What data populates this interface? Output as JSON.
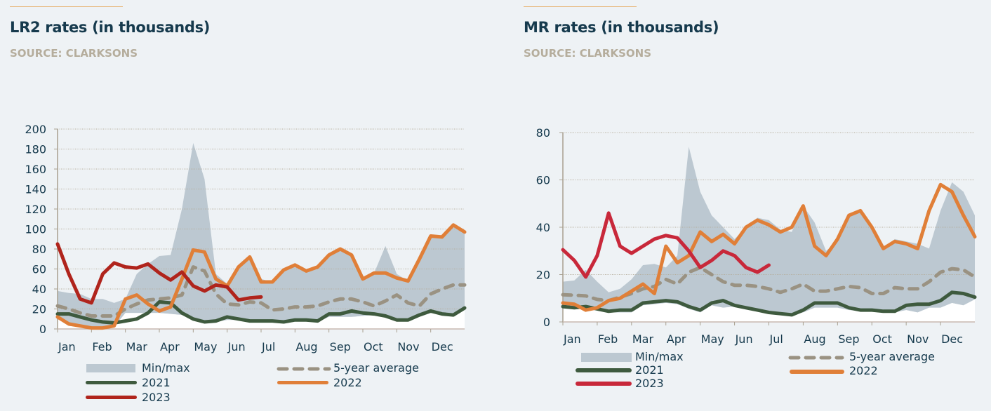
{
  "colors": {
    "background": "#eef2f5",
    "title": "#163a4d",
    "source": "#b5ad9c",
    "accent": "#e8b87a",
    "minmax": "#bcc8d1",
    "y2021": "#3e5a3e",
    "y2022": "#e07f38",
    "y2023_lr2": "#b0241c",
    "y2023_mr": "#c8283a",
    "avg5": "#9a9282"
  },
  "legend": {
    "minmax": "Min/max",
    "avg5": "5-year average",
    "y2021": "2021",
    "y2022": "2022",
    "y2023": "2023"
  },
  "chart_data": [
    {
      "type": "line",
      "title": "LR2 rates (in thousands)",
      "subtitle": "SOURCE: CLARKSONS",
      "x_tick_labels": [
        "Jan",
        "Feb",
        "Mar",
        "Apr",
        "May",
        "Jun",
        "Jul",
        "Aug",
        "Sep",
        "Oct",
        "Nov",
        "Dec"
      ],
      "y_ticks": [
        0,
        20,
        40,
        60,
        80,
        100,
        120,
        140,
        160,
        180,
        200
      ],
      "ylim": [
        0,
        200
      ],
      "grid": true,
      "legend_position": "bottom",
      "x_sampling": "three points per month, Jan to end of Dec",
      "band": {
        "name": "Min/max",
        "max": [
          38,
          36,
          35,
          30,
          30,
          26,
          30,
          55,
          65,
          73,
          74,
          120,
          186,
          150,
          55,
          45,
          62,
          73,
          50,
          47,
          59,
          64,
          58,
          62,
          74,
          80,
          74,
          50,
          56,
          83,
          55,
          48,
          70,
          93,
          92,
          104,
          97
        ],
        "min": [
          10,
          3,
          2,
          0,
          0,
          2,
          16,
          16,
          16,
          16,
          15,
          14,
          9,
          6,
          7,
          9,
          9,
          7,
          7,
          7,
          6,
          8,
          8,
          7,
          12,
          12,
          12,
          13,
          14,
          12,
          8,
          8,
          12,
          16,
          14,
          14,
          20
        ]
      },
      "series": [
        {
          "name": "5-year average",
          "style": "dashed",
          "values": [
            23,
            20,
            16,
            13,
            13,
            13,
            20,
            25,
            29,
            30,
            31,
            34,
            62,
            58,
            35,
            25,
            24,
            27,
            26,
            19,
            20,
            22,
            22,
            23,
            27,
            30,
            30,
            27,
            23,
            28,
            34,
            26,
            23,
            35,
            40,
            44,
            44
          ]
        },
        {
          "name": "2021",
          "values": [
            15,
            15,
            12,
            9,
            7,
            6,
            8,
            10,
            16,
            27,
            26,
            16,
            10,
            7,
            8,
            12,
            10,
            8,
            8,
            8,
            7,
            9,
            9,
            8,
            15,
            15,
            18,
            16,
            15,
            13,
            9,
            9,
            14,
            18,
            15,
            14,
            21
          ]
        },
        {
          "name": "2022",
          "values": [
            12,
            5,
            3,
            1,
            1,
            3,
            30,
            34,
            25,
            18,
            22,
            50,
            79,
            77,
            50,
            43,
            62,
            72,
            47,
            47,
            59,
            64,
            58,
            62,
            74,
            80,
            74,
            50,
            56,
            56,
            51,
            48,
            70,
            93,
            92,
            104,
            97
          ]
        },
        {
          "name": "2023",
          "values": [
            85,
            55,
            30,
            26,
            55,
            66,
            62,
            61,
            65,
            56,
            49,
            57,
            43,
            38,
            44,
            42,
            29,
            31,
            32
          ]
        }
      ]
    },
    {
      "type": "line",
      "title": "MR rates (in thousands)",
      "subtitle": "SOURCE: CLARKSONS",
      "x_tick_labels": [
        "Jan",
        "Feb",
        "Mar",
        "Apr",
        "May",
        "Jun",
        "Jul",
        "Aug",
        "Sep",
        "Oct",
        "Nov",
        "Dec"
      ],
      "y_ticks": [
        0,
        20,
        40,
        60,
        80
      ],
      "ylim": [
        0,
        80
      ],
      "grid": true,
      "legend_position": "bottom",
      "x_sampling": "three points per month, Jan to end of Dec",
      "band": {
        "name": "Min/max",
        "max": [
          17,
          17.5,
          22,
          17,
          12.5,
          14,
          18,
          24,
          24.5,
          23,
          28,
          74,
          55,
          45,
          40,
          35,
          40,
          44,
          43,
          39,
          38,
          49,
          42,
          30,
          34,
          45,
          47,
          40,
          31,
          35,
          34,
          33,
          31,
          47,
          59,
          55,
          45
        ],
        "min": [
          6,
          5.5,
          5.5,
          5,
          4,
          4,
          4,
          7,
          7.5,
          8,
          7.5,
          5.5,
          4,
          7,
          6,
          6.5,
          5.5,
          5,
          4,
          3,
          3,
          4,
          6,
          6,
          6,
          5,
          4.5,
          4.5,
          4,
          4,
          5,
          4,
          6,
          6,
          8,
          7,
          9.5
        ]
      },
      "series": [
        {
          "name": "5-year average",
          "style": "dashed",
          "values": [
            11.5,
            11.3,
            11,
            9.5,
            9,
            10.5,
            12,
            14,
            15,
            18,
            16,
            21,
            23,
            20,
            17,
            15.5,
            15.5,
            15,
            14,
            12.5,
            14,
            16,
            13,
            13,
            14,
            15,
            14.5,
            12,
            12,
            14.5,
            14,
            14,
            17,
            21,
            22.5,
            22,
            19
          ]
        },
        {
          "name": "2021",
          "values": [
            6.5,
            6,
            6.5,
            5.5,
            4.5,
            5,
            5,
            8,
            8.5,
            9,
            8.5,
            6.5,
            5,
            8,
            9,
            7,
            6,
            5,
            4,
            3.5,
            3,
            5,
            8,
            8,
            8,
            6,
            5,
            5,
            4.5,
            4.5,
            7,
            7.5,
            7.5,
            9,
            12.5,
            12,
            10.5
          ]
        },
        {
          "name": "2022",
          "values": [
            8,
            7.5,
            5,
            6,
            9,
            10,
            13,
            16,
            12,
            32,
            25,
            28,
            38,
            34,
            37,
            33,
            40,
            43,
            41,
            38,
            40,
            49,
            32,
            28,
            35,
            45,
            47,
            40,
            31,
            34,
            33,
            31,
            47,
            58,
            55,
            45,
            36
          ]
        },
        {
          "name": "2023",
          "values": [
            30.5,
            26,
            19,
            28,
            46,
            32,
            29,
            32,
            35,
            36.5,
            35.5,
            30,
            23,
            26,
            30,
            28,
            23,
            21,
            24
          ]
        }
      ]
    }
  ]
}
